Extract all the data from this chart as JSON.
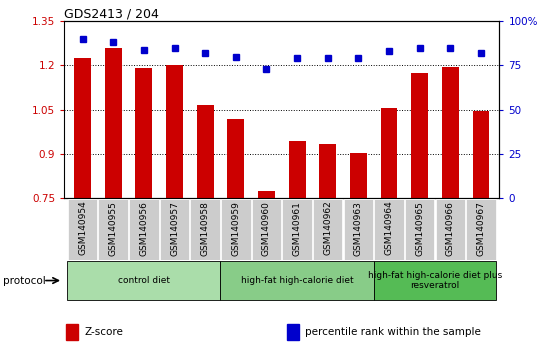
{
  "title": "GDS2413 / 204",
  "samples": [
    "GSM140954",
    "GSM140955",
    "GSM140956",
    "GSM140957",
    "GSM140958",
    "GSM140959",
    "GSM140960",
    "GSM140961",
    "GSM140962",
    "GSM140963",
    "GSM140964",
    "GSM140965",
    "GSM140966",
    "GSM140967"
  ],
  "z_scores": [
    1.225,
    1.26,
    1.19,
    1.2,
    1.065,
    1.02,
    0.775,
    0.945,
    0.935,
    0.905,
    1.055,
    1.175,
    1.195,
    1.045
  ],
  "percentile_ranks": [
    90,
    88,
    84,
    85,
    82,
    80,
    73,
    79,
    79,
    79,
    83,
    85,
    85,
    82
  ],
  "bar_color": "#cc0000",
  "dot_color": "#0000cc",
  "ylim_left": [
    0.75,
    1.35
  ],
  "ylim_right": [
    0,
    100
  ],
  "yticks_left": [
    0.75,
    0.9,
    1.05,
    1.2,
    1.35
  ],
  "yticks_right": [
    0,
    25,
    50,
    75,
    100
  ],
  "ytick_labels_left": [
    "0.75",
    "0.9",
    "1.05",
    "1.2",
    "1.35"
  ],
  "ytick_labels_right": [
    "0",
    "25",
    "50",
    "75",
    "100%"
  ],
  "groups": [
    {
      "label": "control diet",
      "start": 0,
      "end": 5,
      "color": "#aaddaa"
    },
    {
      "label": "high-fat high-calorie diet",
      "start": 5,
      "end": 10,
      "color": "#88cc88"
    },
    {
      "label": "high-fat high-calorie diet plus\nresveratrol",
      "start": 10,
      "end": 14,
      "color": "#55bb55"
    }
  ],
  "protocol_label": "protocol",
  "legend_items": [
    {
      "color": "#cc0000",
      "label": "Z-score"
    },
    {
      "color": "#0000cc",
      "label": "percentile rank within the sample"
    }
  ],
  "tick_bg": "#cccccc",
  "spine_color": "#000000"
}
